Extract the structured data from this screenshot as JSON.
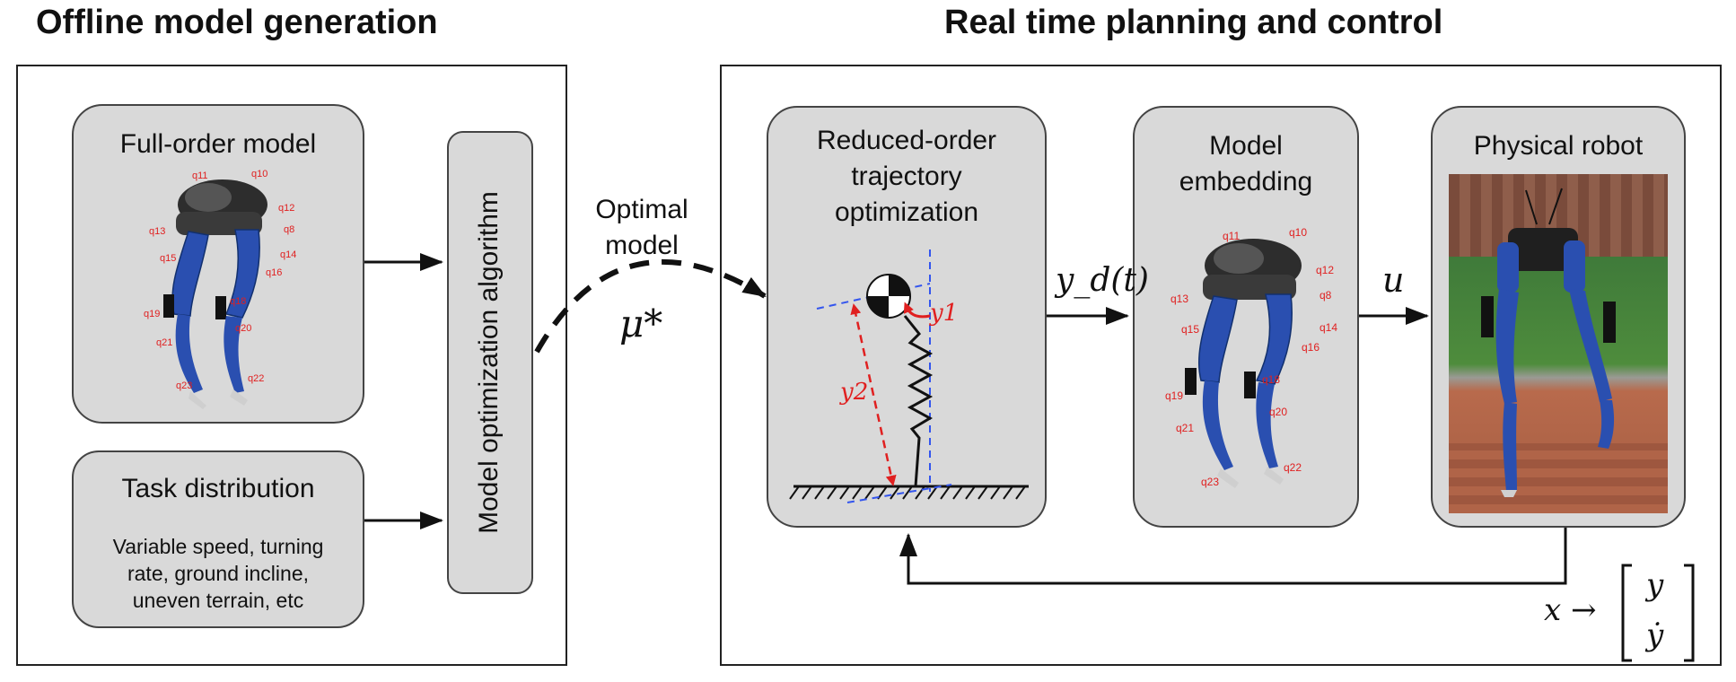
{
  "sections": {
    "offline_title": "Offline model generation",
    "realtime_title": "Real time planning and control"
  },
  "boxes": {
    "full_order_model": "Full-order model",
    "task_distribution": "Task distribution",
    "task_distribution_desc": [
      "Variable speed, turning",
      "rate, ground incline,",
      "uneven terrain, etc"
    ],
    "model_optimization": "Model optimization algorithm",
    "reduced_order": [
      "Reduced-order",
      "trajectory",
      "optimization"
    ],
    "model_embedding": [
      "Model",
      "embedding"
    ],
    "physical_robot": "Physical robot"
  },
  "labels": {
    "optimal_model": [
      "Optimal",
      "model"
    ],
    "mu_star": "μ*",
    "y_d_t": "y_d(t)",
    "u": "u",
    "y1": "y1",
    "y2": "y2",
    "x_arrow": "x →",
    "state_y": "y",
    "state_ydot": "ẏ"
  },
  "joint_labels_full": [
    "q11",
    "q10",
    "q12",
    "q8",
    "q13",
    "q14",
    "q15",
    "q16",
    "q18",
    "q19",
    "q20",
    "q21",
    "q22",
    "q23"
  ],
  "joint_labels_embed": [
    "q11",
    "q10",
    "q12",
    "q8",
    "q13",
    "q14",
    "q15",
    "q16",
    "q18",
    "q19",
    "q20",
    "q21",
    "q22",
    "q23"
  ],
  "colors": {
    "box_fill": "#d9d9d9",
    "robot_blue": "#2a4fb0",
    "annotation_red": "#e02020",
    "dashed_blue": "#3355ee"
  }
}
